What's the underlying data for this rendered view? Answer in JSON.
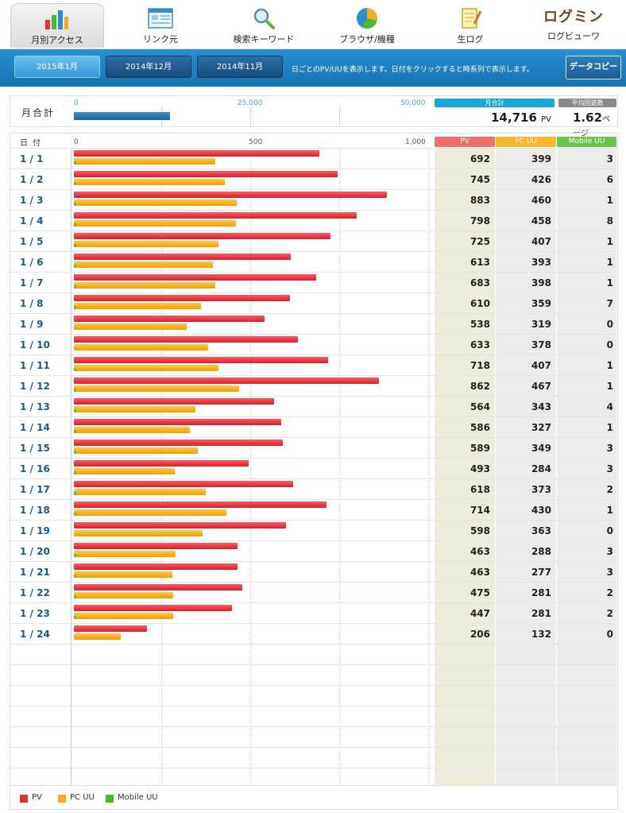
{
  "nav": [
    {
      "label": "月別アクセス",
      "icon": "bar-chart-icon",
      "active": true
    },
    {
      "label": "リンク元",
      "icon": "window-icon",
      "active": false
    },
    {
      "label": "検索キーワード",
      "icon": "magnifier-icon",
      "active": false
    },
    {
      "label": "ブラウザ/機種",
      "icon": "pie-chart-icon",
      "active": false
    },
    {
      "label": "生ログ",
      "icon": "notepad-icon",
      "active": false
    },
    {
      "label": "ログビューワ",
      "icon": "logomin-logo",
      "active": false
    }
  ],
  "logo_text": "ログミン",
  "months": [
    "2015年1月",
    "2014年12月",
    "2014年11月"
  ],
  "bar_description": "日ごとのPV/UUを表示します。日付をクリックすると時系列で表示します。",
  "copy_button": "データコピー",
  "summary": {
    "label": "月合計",
    "ticks": [
      "0",
      "25,000",
      "50,000"
    ],
    "monthly_total_header": "月合計",
    "avg_header": "平均回遊数",
    "total_pv": "14,716",
    "pv_unit": "PV",
    "avg_pages": "1.62",
    "avg_unit": "ページ",
    "scale_max": 50000,
    "total_value": 14716
  },
  "table": {
    "date_header": "日付",
    "axis_ticks": [
      "0",
      "500",
      "1,000"
    ],
    "axis_max": 1000,
    "col_headers": [
      "PV",
      "PC UU",
      "Mobile UU"
    ],
    "rows": [
      {
        "date": "1 / 1",
        "pv": 692,
        "uu": 399,
        "mb": 3
      },
      {
        "date": "1 / 2",
        "pv": 745,
        "uu": 426,
        "mb": 6
      },
      {
        "date": "1 / 3",
        "pv": 883,
        "uu": 460,
        "mb": 1
      },
      {
        "date": "1 / 4",
        "pv": 798,
        "uu": 458,
        "mb": 8
      },
      {
        "date": "1 / 5",
        "pv": 725,
        "uu": 407,
        "mb": 1
      },
      {
        "date": "1 / 6",
        "pv": 613,
        "uu": 393,
        "mb": 1
      },
      {
        "date": "1 / 7",
        "pv": 683,
        "uu": 398,
        "mb": 1
      },
      {
        "date": "1 / 8",
        "pv": 610,
        "uu": 359,
        "mb": 7
      },
      {
        "date": "1 / 9",
        "pv": 538,
        "uu": 319,
        "mb": 0
      },
      {
        "date": "1 / 10",
        "pv": 633,
        "uu": 378,
        "mb": 0
      },
      {
        "date": "1 / 11",
        "pv": 718,
        "uu": 407,
        "mb": 1
      },
      {
        "date": "1 / 12",
        "pv": 862,
        "uu": 467,
        "mb": 1
      },
      {
        "date": "1 / 13",
        "pv": 564,
        "uu": 343,
        "mb": 4
      },
      {
        "date": "1 / 14",
        "pv": 586,
        "uu": 327,
        "mb": 1
      },
      {
        "date": "1 / 15",
        "pv": 589,
        "uu": 349,
        "mb": 3
      },
      {
        "date": "1 / 16",
        "pv": 493,
        "uu": 284,
        "mb": 3
      },
      {
        "date": "1 / 17",
        "pv": 618,
        "uu": 373,
        "mb": 2
      },
      {
        "date": "1 / 18",
        "pv": 714,
        "uu": 430,
        "mb": 1
      },
      {
        "date": "1 / 19",
        "pv": 598,
        "uu": 363,
        "mb": 0
      },
      {
        "date": "1 / 20",
        "pv": 463,
        "uu": 288,
        "mb": 3
      },
      {
        "date": "1 / 21",
        "pv": 463,
        "uu": 277,
        "mb": 3
      },
      {
        "date": "1 / 22",
        "pv": 475,
        "uu": 281,
        "mb": 2
      },
      {
        "date": "1 / 23",
        "pv": 447,
        "uu": 281,
        "mb": 2
      },
      {
        "date": "1 / 24",
        "pv": 206,
        "uu": 132,
        "mb": 0
      }
    ],
    "empty_rows": 7
  },
  "legend": [
    "PV",
    "PC UU",
    "Mobile UU"
  ],
  "colors": {
    "pv": "#e8303a",
    "uu": "#f7ac1e",
    "mobile": "#4cb82e",
    "accent": "#1a7fc3",
    "pv_col_bg": "#ecebdc",
    "other_col_bg": "#ebebeb"
  }
}
